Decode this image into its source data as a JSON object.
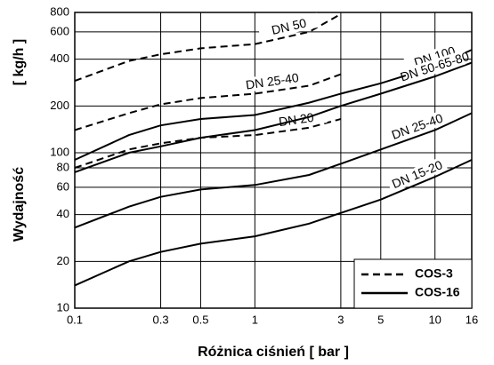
{
  "chart_data": {
    "type": "line",
    "xlabel": "Różnica ciśnień [ bar ]",
    "ylabel": "Wydajność",
    "yunit": "[ kg/h ]",
    "xscale": "log",
    "yscale": "log",
    "grid": true,
    "color": "#000000",
    "legend_position": "bottom-right",
    "x": [
      0.1,
      0.2,
      0.3,
      0.5,
      1,
      2,
      3,
      5,
      10,
      16
    ],
    "xlim": [
      0.1,
      16
    ],
    "ylim": [
      10,
      800
    ],
    "xticks": [
      0.1,
      0.3,
      0.5,
      1,
      3,
      5,
      10,
      16
    ],
    "yticks": [
      10,
      20,
      40,
      60,
      80,
      100,
      200,
      400,
      600,
      800
    ],
    "series": [
      {
        "name": "COS-3",
        "dash": "dashed",
        "curves": [
          {
            "label": "DN 50",
            "values": [
              290,
              390,
              430,
              470,
              500,
              600,
              780,
              null,
              null,
              null
            ]
          },
          {
            "label": "DN 25-40",
            "values": [
              140,
              180,
              205,
              225,
              240,
              270,
              320,
              null,
              null,
              null
            ]
          },
          {
            "label": "DN 20",
            "values": [
              80,
              105,
              115,
              125,
              130,
              145,
              165,
              null,
              null,
              null
            ]
          }
        ]
      },
      {
        "name": "COS-16",
        "dash": "solid",
        "curves": [
          {
            "label": "DN 100",
            "values": [
              90,
              130,
              150,
              165,
              175,
              210,
              240,
              280,
              360,
              460
            ]
          },
          {
            "label": "DN 50-65-80",
            "values": [
              75,
              100,
              110,
              125,
              140,
              170,
              200,
              240,
              310,
              380
            ]
          },
          {
            "label": "DN 25-40",
            "values": [
              33,
              45,
              52,
              58,
              62,
              72,
              85,
              105,
              140,
              180
            ]
          },
          {
            "label": "DN 15-20",
            "values": [
              14,
              20,
              23,
              26,
              29,
              35,
              41,
              50,
              70,
              90
            ]
          }
        ]
      }
    ]
  }
}
